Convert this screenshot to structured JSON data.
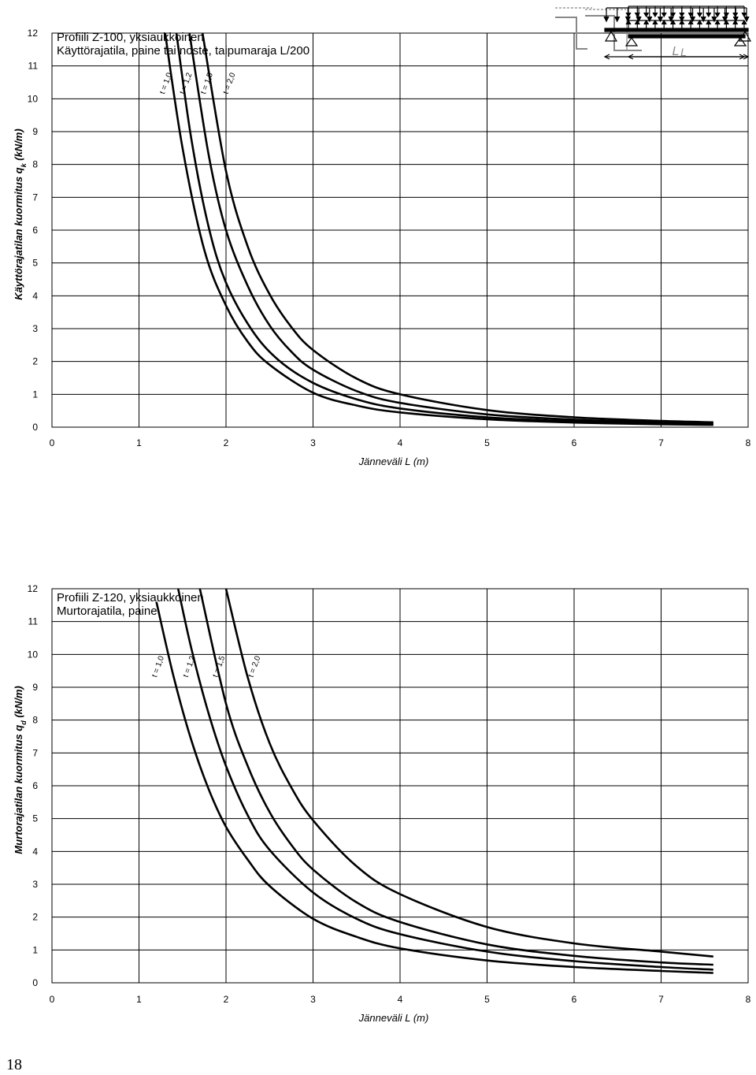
{
  "page_number": "18",
  "chart_data": [
    {
      "type": "line",
      "title": "Profiili Z-100, yksiaukkoinen",
      "subtitle": "Käyttörajatila, paine tai noste, taipumaraja L/200",
      "xlabel": "Jänneväli L (m)",
      "ylabel_main": "Käyttörajatilan kuormitus q",
      "ylabel_sub": "k",
      "ylabel_unit": " (kN/m)",
      "xlim": [
        0,
        8
      ],
      "ylim": [
        0,
        12
      ],
      "xticks": [
        "0",
        "1",
        "2",
        "3",
        "4",
        "5",
        "6",
        "7",
        "8"
      ],
      "yticks": [
        "0",
        "1",
        "2",
        "3",
        "4",
        "5",
        "6",
        "7",
        "8",
        "9",
        "10",
        "11",
        "12"
      ],
      "grid": true,
      "diagram_span_label": "L",
      "series": [
        {
          "name": "t = 1,0",
          "x": [
            1.3,
            1.5,
            1.75,
            2.0,
            2.25,
            2.5,
            3.0,
            3.5,
            4.0,
            5.0,
            6.0,
            7.0,
            7.6
          ],
          "y": [
            12.0,
            8.5,
            5.4,
            3.7,
            2.6,
            1.9,
            1.05,
            0.66,
            0.45,
            0.24,
            0.14,
            0.09,
            0.07
          ]
        },
        {
          "name": "t = 1,2",
          "x": [
            1.43,
            1.6,
            1.8,
            2.0,
            2.3,
            2.6,
            3.0,
            3.5,
            4.0,
            5.0,
            6.0,
            7.0,
            7.6
          ],
          "y": [
            12.0,
            8.8,
            6.1,
            4.4,
            2.95,
            2.05,
            1.35,
            0.85,
            0.57,
            0.3,
            0.18,
            0.12,
            0.09
          ]
        },
        {
          "name": "t = 1,5",
          "x": [
            1.58,
            1.8,
            2.0,
            2.25,
            2.5,
            2.75,
            3.0,
            3.5,
            4.0,
            5.0,
            6.0,
            7.0,
            7.6
          ],
          "y": [
            12.0,
            8.3,
            6.0,
            4.3,
            3.1,
            2.3,
            1.75,
            1.1,
            0.74,
            0.39,
            0.23,
            0.15,
            0.11
          ]
        },
        {
          "name": "t = 2,0",
          "x": [
            1.73,
            2.0,
            2.25,
            2.5,
            2.75,
            3.0,
            3.5,
            4.0,
            5.0,
            6.0,
            7.0,
            7.6
          ],
          "y": [
            12.0,
            7.8,
            5.5,
            4.05,
            3.05,
            2.35,
            1.48,
            1.0,
            0.52,
            0.3,
            0.19,
            0.15
          ]
        }
      ]
    },
    {
      "type": "line",
      "title": "Profiili Z-120, yksiaukkoinen",
      "subtitle": "Murtorajatila, paine",
      "xlabel": "Jänneväli L (m)",
      "ylabel_main": "Murtorajatilan kuormitus q",
      "ylabel_sub": "d",
      "ylabel_unit": " (kN/m)",
      "xlim": [
        0,
        8
      ],
      "ylim": [
        0,
        12
      ],
      "xticks": [
        "0",
        "1",
        "2",
        "3",
        "4",
        "5",
        "6",
        "7",
        "8"
      ],
      "yticks": [
        "0",
        "1",
        "2",
        "3",
        "4",
        "5",
        "6",
        "7",
        "8",
        "9",
        "10",
        "11",
        "12"
      ],
      "grid": true,
      "diagram_span_label": "L",
      "series": [
        {
          "name": "t = 1,0",
          "x": [
            1.2,
            1.4,
            1.6,
            1.8,
            2.0,
            2.25,
            2.5,
            3.0,
            3.5,
            4.0,
            5.0,
            6.0,
            7.0,
            7.6
          ],
          "y": [
            11.6,
            9.3,
            7.4,
            5.9,
            4.75,
            3.75,
            2.95,
            1.95,
            1.4,
            1.05,
            0.68,
            0.48,
            0.36,
            0.3
          ]
        },
        {
          "name": "t = 1,2",
          "x": [
            1.45,
            1.6,
            1.8,
            2.0,
            2.25,
            2.5,
            3.0,
            3.5,
            4.0,
            5.0,
            6.0,
            7.0,
            7.6
          ],
          "y": [
            12.0,
            10.2,
            8.2,
            6.6,
            5.1,
            4.05,
            2.75,
            1.95,
            1.48,
            0.95,
            0.66,
            0.48,
            0.4
          ]
        },
        {
          "name": "t = 1,5",
          "x": [
            1.7,
            2.0,
            2.25,
            2.5,
            2.75,
            3.0,
            3.5,
            4.0,
            5.0,
            6.0,
            7.0,
            7.6
          ],
          "y": [
            12.0,
            8.5,
            6.6,
            5.2,
            4.2,
            3.45,
            2.45,
            1.85,
            1.17,
            0.82,
            0.62,
            0.55
          ]
        },
        {
          "name": "t = 2,0",
          "x": [
            2.0,
            2.25,
            2.5,
            2.75,
            3.0,
            3.5,
            4.0,
            5.0,
            6.0,
            7.0,
            7.6
          ],
          "y": [
            12.0,
            9.3,
            7.3,
            5.95,
            4.95,
            3.55,
            2.7,
            1.7,
            1.2,
            0.95,
            0.8
          ]
        }
      ]
    }
  ]
}
